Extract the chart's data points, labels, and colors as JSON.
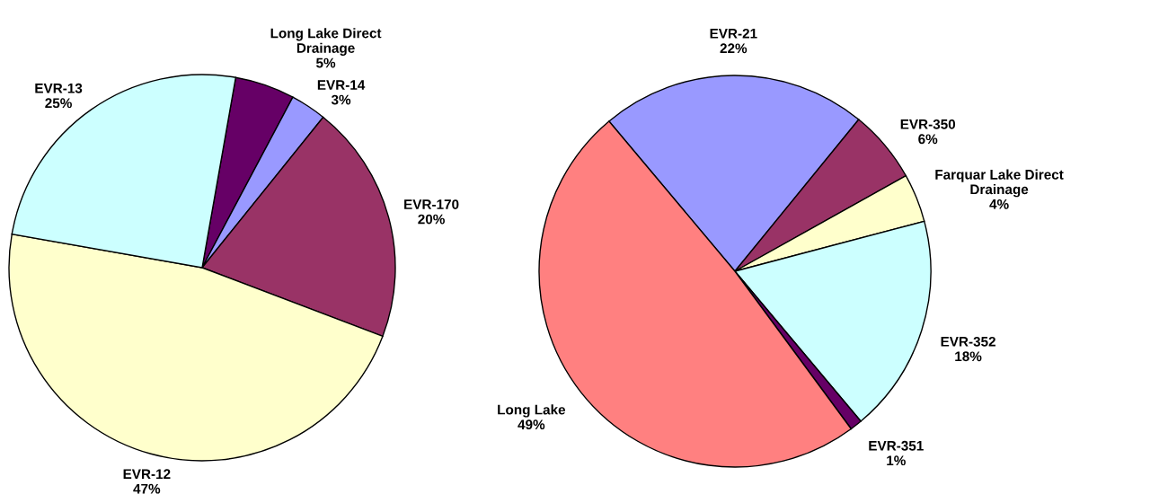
{
  "chart_data": [
    {
      "type": "pie",
      "categories": [
        "Long Lake Direct\nDrainage",
        "EVR-14",
        "EVR-170",
        "EVR-12",
        "EVR-13"
      ],
      "values": [
        5,
        3,
        20,
        47,
        25
      ],
      "value_labels": [
        "5%",
        "3%",
        "20%",
        "47%",
        "25%"
      ],
      "colors": [
        "#660066",
        "#9999ff",
        "#993366",
        "#ffffcc",
        "#ccffff"
      ]
    },
    {
      "type": "pie",
      "categories": [
        "EVR-21",
        "EVR-350",
        "Farquar Lake Direct\nDrainage",
        "EVR-352",
        "EVR-351",
        "Long Lake"
      ],
      "values": [
        22,
        6,
        4,
        18,
        1,
        49
      ],
      "value_labels": [
        "22%",
        "6%",
        "4%",
        "18%",
        "1%",
        "49%"
      ],
      "colors": [
        "#9999ff",
        "#993366",
        "#ffffcc",
        "#ccffff",
        "#660066",
        "#ff8080"
      ]
    }
  ]
}
